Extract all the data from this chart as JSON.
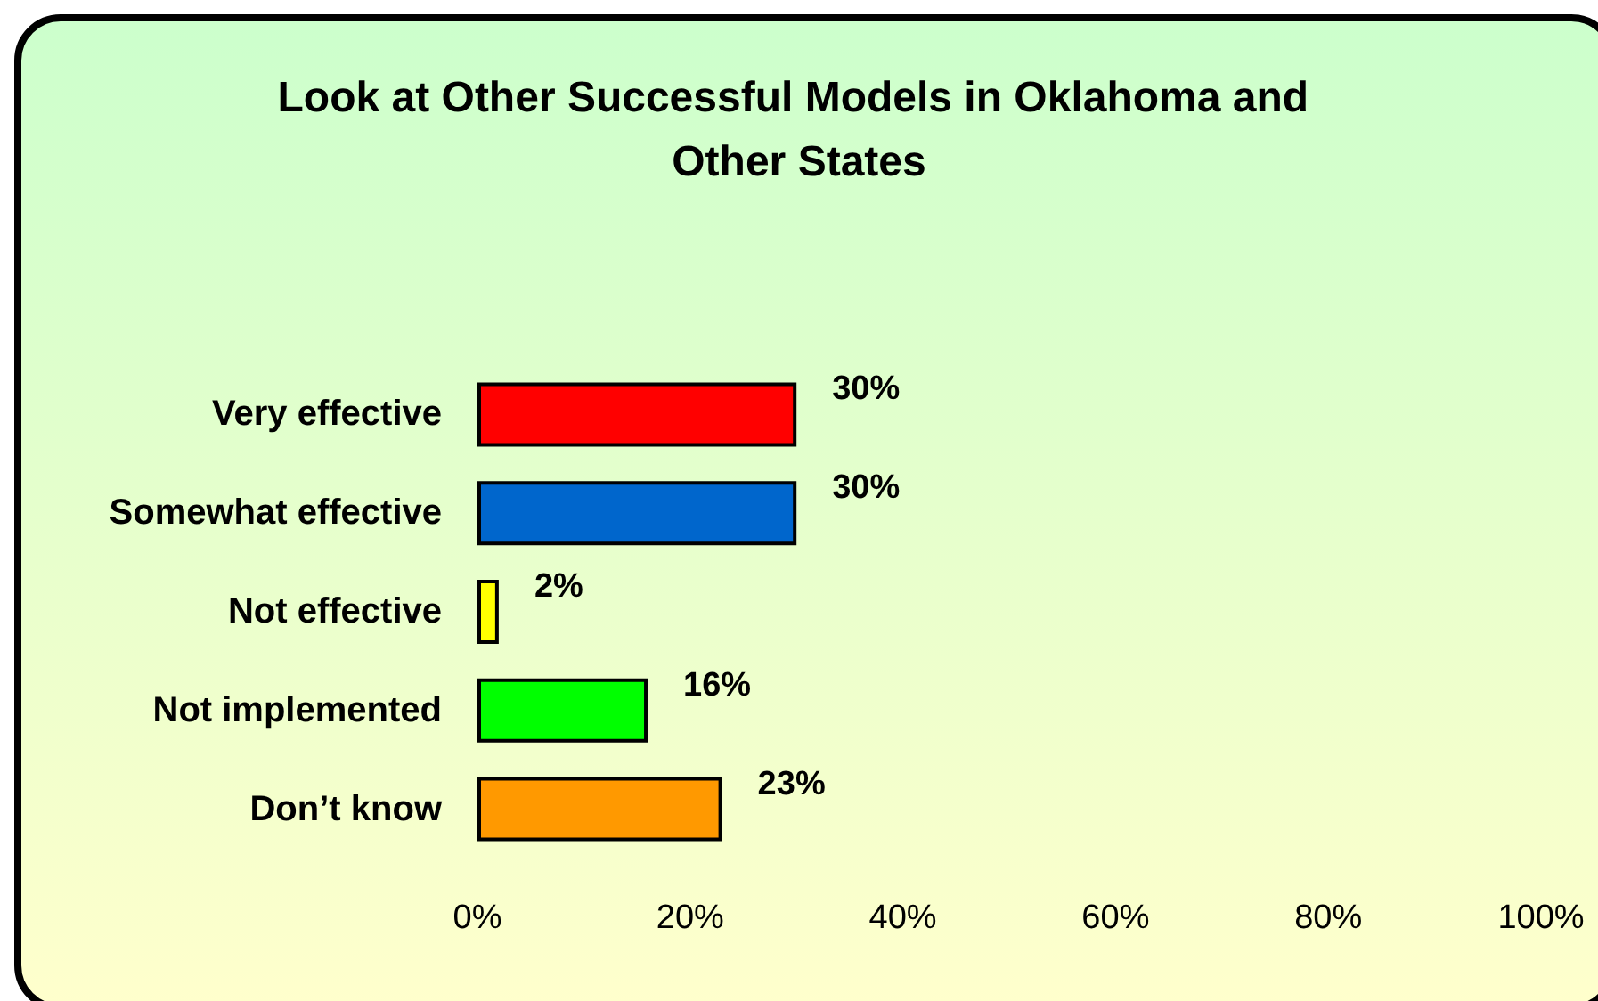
{
  "chart_data": {
    "type": "bar",
    "orientation": "horizontal",
    "title": "Look at Other Successful Models in Oklahoma and Other States",
    "categories": [
      "Very effective",
      "Somewhat effective",
      "Not effective",
      "Not implemented",
      "Don’t know"
    ],
    "values": [
      30,
      30,
      2,
      16,
      23
    ],
    "colors": [
      "#ff0000",
      "#0066cc",
      "#ffff00",
      "#00ff00",
      "#ff9900"
    ],
    "value_labels": [
      "30%",
      "30%",
      "2%",
      "16%",
      "23%"
    ],
    "xlim": [
      0,
      100
    ],
    "xticks": [
      {
        "value": 0,
        "label": "0%"
      },
      {
        "value": 20,
        "label": "20%"
      },
      {
        "value": 40,
        "label": "40%"
      },
      {
        "value": 60,
        "label": "60%"
      },
      {
        "value": 80,
        "label": "80%"
      },
      {
        "value": 100,
        "label": "100%"
      }
    ],
    "grid": false
  }
}
